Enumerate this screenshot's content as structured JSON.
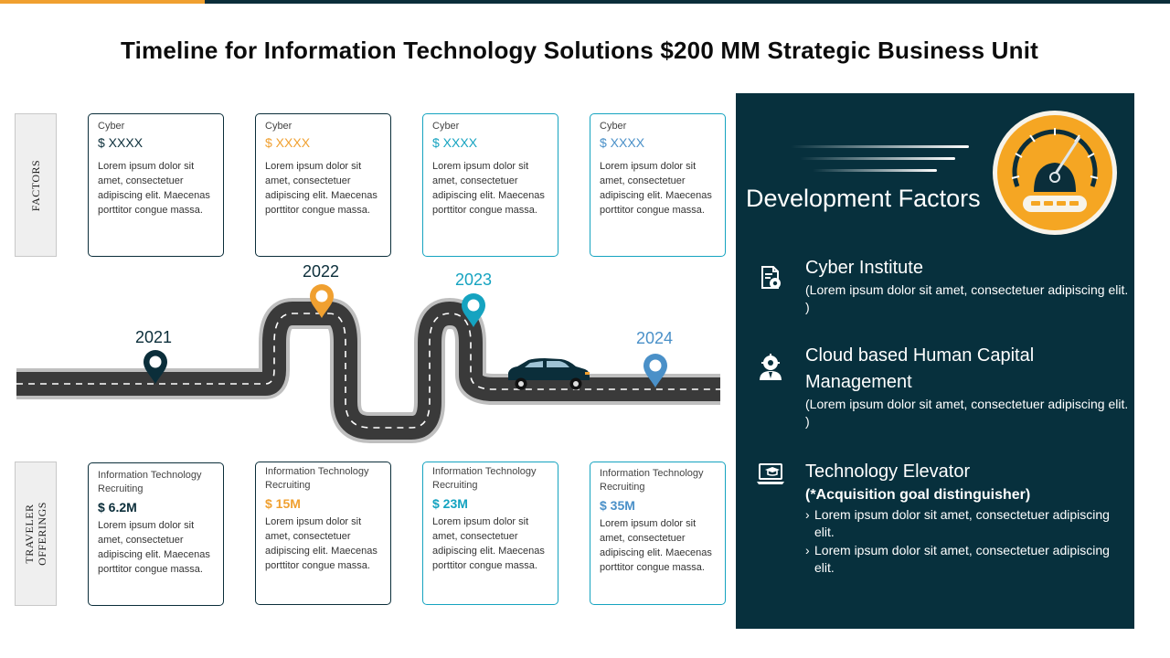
{
  "title": "Timeline for Information Technology Solutions $200 MM Strategic Business Unit",
  "colors": {
    "accent_orange": "#f0a030",
    "dark_teal": "#0b2e3a",
    "teal": "#15a3c0",
    "blue": "#4a90c8"
  },
  "labels": {
    "factors": "FACTORS",
    "traveler_line1": "TRAVELER",
    "traveler_line2": "OFFERINGS"
  },
  "factor_cards": [
    {
      "label": "Cyber",
      "value": "$ XXXX",
      "text": "Lorem ipsum dolor sit amet, consectetuer adipiscing elit. Maecenas porttitor congue massa."
    },
    {
      "label": "Cyber",
      "value": "$ XXXX",
      "text": "Lorem ipsum dolor sit amet, consectetuer adipiscing elit. Maecenas porttitor congue massa."
    },
    {
      "label": "Cyber",
      "value": "$ XXXX",
      "text": "Lorem ipsum dolor sit amet, consectetuer adipiscing elit. Maecenas porttitor congue massa."
    },
    {
      "label": "Cyber",
      "value": "$ XXXX",
      "text": "Lorem ipsum dolor sit amet, consectetuer adipiscing elit. Maecenas porttitor congue massa."
    }
  ],
  "years": [
    "2021",
    "2022",
    "2023",
    "2024"
  ],
  "offering_cards": [
    {
      "label": "Information Technology Recruiting",
      "value": "$ 6.2M",
      "text": "Lorem ipsum dolor sit amet, consectetuer adipiscing elit. Maecenas porttitor congue massa."
    },
    {
      "label": "Information Technology Recruiting",
      "value": "$ 15M",
      "text": "Lorem ipsum dolor sit amet, consectetuer adipiscing elit. Maecenas porttitor congue massa."
    },
    {
      "label": "Information Technology Recruiting",
      "value": "$ 23M",
      "text": "Lorem ipsum dolor sit amet, consectetuer adipiscing elit. Maecenas porttitor congue massa."
    },
    {
      "label": "Information Technology Recruiting",
      "value": "$ 35M",
      "text": "Lorem ipsum dolor sit amet, consectetuer adipiscing elit. Maecenas porttitor congue massa."
    }
  ],
  "panel": {
    "title": "Development Factors",
    "items": [
      {
        "icon": "document-gear-icon",
        "heading": "Cyber Institute",
        "sub": "(Lorem ipsum dolor sit amet, consectetuer adipiscing elit. )"
      },
      {
        "icon": "person-gear-icon",
        "heading": "Cloud based Human Capital Management",
        "sub": "(Lorem ipsum dolor sit amet, consectetuer adipiscing elit. )"
      },
      {
        "icon": "laptop-graduation-icon",
        "heading": "Technology Elevator",
        "bold": "(*Acquisition goal distinguisher)",
        "bullets": [
          "Lorem ipsum dolor sit amet, consectetuer adipiscing elit.",
          "Lorem ipsum dolor sit amet, consectetuer adipiscing elit."
        ]
      }
    ]
  }
}
